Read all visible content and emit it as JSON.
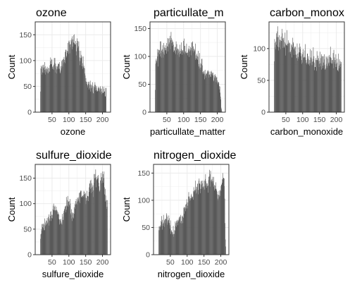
{
  "chart_data": [
    {
      "type": "bar",
      "title": "ozone",
      "xlabel": "ozone",
      "ylabel": "Count",
      "xlim": [
        0,
        224
      ],
      "ylim": [
        0,
        175
      ],
      "x_ticks": [
        50,
        100,
        150,
        200
      ],
      "y_ticks": [
        0,
        50,
        100,
        150
      ],
      "bin_start": 15,
      "bin_width": 1,
      "values": [
        40,
        85,
        90,
        84,
        88,
        73,
        77,
        91,
        85,
        92,
        76,
        87,
        82,
        97,
        89,
        73,
        83,
        79,
        85,
        77,
        88,
        83,
        75,
        76,
        86,
        85,
        79,
        78,
        91,
        99,
        106,
        93,
        93,
        103,
        101,
        84,
        88,
        84,
        89,
        92,
        82,
        105,
        96,
        105,
        77,
        94,
        86,
        89,
        75,
        83,
        88,
        90,
        94,
        84,
        93,
        94,
        97,
        84,
        75,
        77,
        81,
        89,
        85,
        99,
        90,
        101,
        88,
        103,
        95,
        103,
        107,
        97,
        101,
        117,
        95,
        121,
        121,
        106,
        109,
        119,
        115,
        134,
        118,
        113,
        137,
        139,
        136,
        114,
        131,
        132,
        126,
        140,
        137,
        143,
        147,
        122,
        141,
        127,
        135,
        149,
        151,
        134,
        131,
        132,
        131,
        138,
        118,
        110,
        134,
        143,
        124,
        138,
        126,
        128,
        137,
        119,
        106,
        99,
        91,
        105,
        119,
        111,
        105,
        108,
        89,
        84,
        95,
        108,
        87,
        90,
        86,
        85,
        75,
        71,
        60,
        66,
        59,
        55,
        59,
        54,
        48,
        52,
        59,
        55,
        44,
        59,
        47,
        53,
        61,
        40,
        54,
        46,
        52,
        48,
        40,
        58,
        51,
        37,
        36,
        49,
        46,
        53,
        58,
        53,
        42,
        48,
        51,
        40,
        43,
        40,
        41,
        47,
        49,
        46,
        41,
        48,
        40,
        44,
        50,
        38,
        46,
        45,
        35,
        40,
        50,
        37,
        38,
        37,
        49,
        45,
        40,
        40,
        31,
        30,
        47,
        47
      ]
    },
    {
      "type": "bar",
      "title": "particullate_m",
      "xlabel": "particullate_matter",
      "ylabel": "Count",
      "xlim": [
        0,
        224
      ],
      "ylim": [
        0,
        162
      ],
      "x_ticks": [
        50,
        100,
        150,
        200
      ],
      "y_ticks": [
        0,
        50,
        100,
        150
      ],
      "bin_start": 15,
      "bin_width": 1,
      "values": [
        40,
        87,
        93,
        96,
        92,
        89,
        113,
        100,
        82,
        107,
        112,
        112,
        104,
        111,
        100,
        127,
        106,
        127,
        98,
        110,
        112,
        113,
        120,
        108,
        98,
        124,
        105,
        116,
        103,
        120,
        111,
        115,
        111,
        105,
        124,
        118,
        118,
        133,
        109,
        132,
        117,
        122,
        125,
        133,
        137,
        113,
        129,
        144,
        133,
        124,
        130,
        119,
        127,
        125,
        121,
        108,
        111,
        110,
        117,
        107,
        117,
        104,
        127,
        111,
        122,
        111,
        114,
        103,
        114,
        106,
        112,
        99,
        109,
        121,
        104,
        105,
        110,
        113,
        125,
        103,
        109,
        111,
        111,
        107,
        128,
        104,
        132,
        119,
        119,
        107,
        109,
        106,
        106,
        123,
        107,
        106,
        102,
        107,
        114,
        111,
        119,
        99,
        109,
        113,
        111,
        117,
        102,
        115,
        125,
        111,
        125,
        127,
        110,
        118,
        107,
        114,
        110,
        112,
        109,
        123,
        94,
        97,
        102,
        95,
        105,
        101,
        94,
        99,
        110,
        86,
        82,
        78,
        106,
        80,
        76,
        88,
        80,
        86,
        95,
        96,
        84,
        72,
        68,
        70,
        73,
        74,
        69,
        59,
        76,
        66,
        62,
        69,
        68,
        69,
        71,
        74,
        72,
        75,
        67,
        73,
        62,
        67,
        68,
        73,
        64,
        63,
        68,
        74,
        72,
        67,
        70,
        65,
        71,
        57,
        55,
        67,
        61,
        64,
        68,
        61,
        65,
        54,
        62,
        63,
        53,
        57,
        54,
        50,
        54,
        53,
        47,
        41,
        46,
        35,
        28,
        23,
        8,
        5,
        1,
        1
      ]
    },
    {
      "type": "bar",
      "title": "carbon_monox",
      "xlabel": "carbon_monoxide",
      "ylabel": "Count",
      "xlim": [
        0,
        224
      ],
      "ylim": [
        0,
        142
      ],
      "x_ticks": [
        50,
        100,
        150,
        200
      ],
      "y_ticks": [
        0,
        50,
        100
      ],
      "bin_start": 15,
      "bin_width": 1,
      "values": [
        80,
        115,
        109,
        102,
        111,
        99,
        124,
        106,
        118,
        127,
        135,
        103,
        118,
        97,
        102,
        121,
        110,
        114,
        113,
        99,
        119,
        112,
        112,
        131,
        124,
        101,
        116,
        113,
        117,
        103,
        101,
        110,
        125,
        108,
        89,
        106,
        105,
        105,
        129,
        107,
        104,
        108,
        113,
        110,
        94,
        108,
        109,
        95,
        92,
        95,
        107,
        98,
        105,
        86,
        102,
        117,
        108,
        110,
        99,
        90,
        101,
        103,
        96,
        103,
        91,
        90,
        85,
        85,
        108,
        81,
        92,
        87,
        84,
        94,
        102,
        108,
        94,
        99,
        103,
        93,
        88,
        76,
        82,
        91,
        78,
        94,
        99,
        86,
        86,
        86,
        87,
        97,
        107,
        86,
        77,
        82,
        75,
        78,
        92,
        92,
        84,
        76,
        88,
        75,
        82,
        73,
        77,
        99,
        82,
        86,
        74,
        97,
        84,
        74,
        79,
        80,
        102,
        84,
        88,
        78,
        66,
        71,
        71,
        82,
        85,
        65,
        82,
        96,
        82,
        82,
        89,
        80,
        85,
        71,
        76,
        81,
        95,
        77,
        72,
        85,
        91,
        67,
        88,
        88,
        69,
        73,
        78,
        88,
        83,
        91,
        74,
        67,
        67,
        69,
        88,
        76,
        86,
        73,
        70,
        84,
        88,
        78,
        76,
        90,
        73,
        87,
        78,
        103,
        86,
        85,
        77,
        76,
        82,
        77,
        82,
        93,
        69,
        98,
        79,
        86,
        76,
        82,
        71,
        91,
        76,
        71,
        84,
        78,
        66,
        66,
        64,
        92,
        73,
        69,
        83,
        75,
        80,
        71,
        76,
        79
      ]
    },
    {
      "type": "bar",
      "title": "sulfure_dioxide",
      "xlabel": "sulfure_dioxide",
      "ylabel": "Count",
      "xlim": [
        0,
        224
      ],
      "ylim": [
        0,
        177
      ],
      "x_ticks": [
        50,
        100,
        150,
        200
      ],
      "y_ticks": [
        0,
        50,
        100,
        150
      ],
      "bin_start": 15,
      "bin_width": 1,
      "values": [
        31,
        40,
        41,
        50,
        60,
        47,
        54,
        60,
        61,
        52,
        59,
        48,
        48,
        71,
        63,
        56,
        59,
        67,
        59,
        66,
        72,
        61,
        63,
        74,
        70,
        79,
        57,
        67,
        71,
        76,
        84,
        85,
        66,
        78,
        72,
        71,
        78,
        89,
        96,
        100,
        87,
        87,
        94,
        96,
        87,
        87,
        85,
        94,
        88,
        87,
        85,
        79,
        80,
        83,
        70,
        79,
        59,
        69,
        69,
        61,
        66,
        70,
        63,
        60,
        59,
        80,
        74,
        68,
        68,
        82,
        86,
        90,
        87,
        94,
        95,
        96,
        83,
        113,
        88,
        96,
        107,
        115,
        94,
        104,
        104,
        105,
        98,
        95,
        109,
        100,
        81,
        78,
        89,
        71,
        83,
        66,
        81,
        73,
        71,
        82,
        93,
        80,
        99,
        90,
        105,
        98,
        109,
        100,
        98,
        104,
        112,
        107,
        110,
        106,
        113,
        121,
        104,
        122,
        101,
        124,
        126,
        125,
        113,
        112,
        114,
        116,
        115,
        113,
        117,
        125,
        123,
        117,
        119,
        112,
        121,
        99,
        111,
        106,
        125,
        106,
        115,
        115,
        114,
        105,
        123,
        132,
        139,
        140,
        145,
        129,
        147,
        121,
        131,
        140,
        133,
        123,
        136,
        113,
        126,
        158,
        141,
        150,
        158,
        150,
        167,
        152,
        132,
        146,
        148,
        154,
        149,
        150,
        156,
        141,
        134,
        124,
        124,
        127,
        145,
        146,
        160,
        151,
        152,
        140,
        163,
        145,
        158,
        141,
        150,
        163,
        132,
        118,
        104,
        129,
        116,
        106,
        107,
        90,
        94,
        107
      ]
    },
    {
      "type": "bar",
      "title": "nitrogen_dioxide",
      "xlabel": "nitrogen_dioxide",
      "ylabel": "Count",
      "xlim": [
        0,
        224
      ],
      "ylim": [
        0,
        166
      ],
      "x_ticks": [
        50,
        100,
        150,
        200
      ],
      "y_ticks": [
        0,
        50,
        100,
        150
      ],
      "bin_start": 15,
      "bin_width": 1,
      "values": [
        45,
        52,
        52,
        45,
        51,
        54,
        52,
        62,
        71,
        60,
        46,
        64,
        53,
        57,
        73,
        59,
        51,
        63,
        64,
        66,
        58,
        66,
        64,
        76,
        73,
        70,
        55,
        63,
        59,
        64,
        72,
        67,
        58,
        48,
        54,
        63,
        38,
        43,
        45,
        42,
        41,
        37,
        38,
        53,
        33,
        38,
        38,
        45,
        44,
        61,
        58,
        53,
        62,
        51,
        59,
        64,
        62,
        54,
        64,
        61,
        68,
        65,
        70,
        70,
        58,
        73,
        59,
        62,
        57,
        70,
        72,
        70,
        58,
        68,
        86,
        88,
        75,
        85,
        87,
        80,
        92,
        85,
        93,
        102,
        96,
        85,
        90,
        96,
        107,
        115,
        106,
        107,
        99,
        103,
        104,
        100,
        109,
        112,
        105,
        103,
        107,
        106,
        101,
        117,
        124,
        115,
        117,
        119,
        118,
        136,
        120,
        112,
        125,
        114,
        124,
        130,
        131,
        119,
        111,
        136,
        140,
        130,
        131,
        113,
        121,
        135,
        129,
        121,
        136,
        125,
        131,
        136,
        124,
        123,
        126,
        119,
        136,
        120,
        139,
        148,
        135,
        127,
        131,
        123,
        131,
        126,
        127,
        114,
        143,
        137,
        144,
        156,
        148,
        125,
        154,
        135,
        137,
        134,
        139,
        135,
        143,
        135,
        131,
        143,
        125,
        128,
        118,
        121,
        127,
        121,
        133,
        121,
        118,
        116,
        111,
        103,
        100,
        110,
        110,
        117,
        106,
        109,
        119,
        108,
        117,
        126,
        129,
        128,
        132,
        139,
        150,
        138,
        141,
        141,
        126,
        140,
        103,
        58,
        28,
        15
      ]
    }
  ]
}
